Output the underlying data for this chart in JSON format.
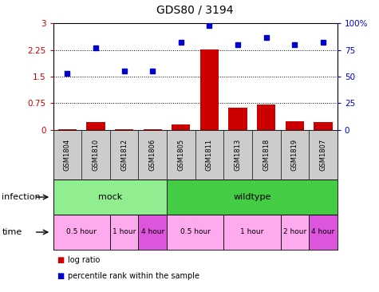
{
  "title": "GDS80 / 3194",
  "samples": [
    "GSM1804",
    "GSM1810",
    "GSM1812",
    "GSM1806",
    "GSM1805",
    "GSM1811",
    "GSM1813",
    "GSM1818",
    "GSM1819",
    "GSM1807"
  ],
  "log_ratio": [
    0.03,
    0.22,
    0.02,
    0.03,
    0.15,
    2.27,
    0.62,
    0.72,
    0.25,
    0.23
  ],
  "percentile": [
    53,
    77,
    55,
    55,
    82,
    98,
    80,
    87,
    80,
    82
  ],
  "bar_color": "#cc0000",
  "dot_color": "#0000cc",
  "ylim_left": [
    0,
    3
  ],
  "ylim_right": [
    0,
    100
  ],
  "yticks_left": [
    0,
    0.75,
    1.5,
    2.25,
    3
  ],
  "yticks_right": [
    0,
    25,
    50,
    75,
    100
  ],
  "ytick_labels_left": [
    "0",
    "0.75",
    "1.5",
    "2.25",
    "3"
  ],
  "ytick_labels_right": [
    "0",
    "25",
    "50",
    "75",
    "100%"
  ],
  "hlines": [
    0.75,
    1.5,
    2.25
  ],
  "infection_groups": [
    {
      "label": "mock",
      "start": 0,
      "end": 4,
      "color": "#90ee90"
    },
    {
      "label": "wildtype",
      "start": 4,
      "end": 10,
      "color": "#44cc44"
    }
  ],
  "time_groups": [
    {
      "label": "0.5 hour",
      "start": 0,
      "end": 2,
      "color": "#ffaaee"
    },
    {
      "label": "1 hour",
      "start": 2,
      "end": 3,
      "color": "#ffaaee"
    },
    {
      "label": "4 hour",
      "start": 3,
      "end": 4,
      "color": "#dd55dd"
    },
    {
      "label": "0.5 hour",
      "start": 4,
      "end": 6,
      "color": "#ffaaee"
    },
    {
      "label": "1 hour",
      "start": 6,
      "end": 8,
      "color": "#ffaaee"
    },
    {
      "label": "2 hour",
      "start": 8,
      "end": 9,
      "color": "#ffaaee"
    },
    {
      "label": "4 hour",
      "start": 9,
      "end": 10,
      "color": "#dd55dd"
    }
  ],
  "legend_label_ratio": "log ratio",
  "legend_label_pct": "percentile rank within the sample",
  "infection_label": "infection",
  "time_label": "time",
  "background_color": "#ffffff",
  "sample_bg_color": "#cccccc"
}
